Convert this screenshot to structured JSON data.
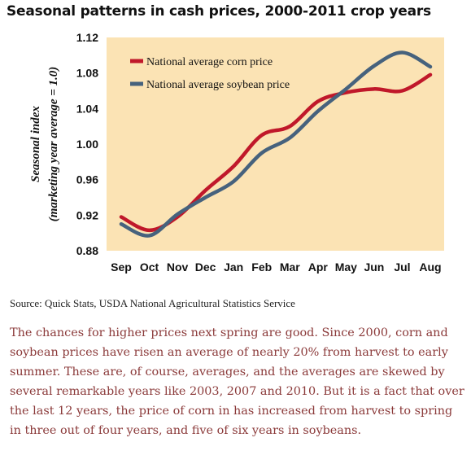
{
  "title": "Seasonal patterns in cash prices, 2000-2011 crop years",
  "source": "Source: Quick Stats, USDA National Agricultural Statistics Service",
  "body_text": "The chances for higher prices next spring are good. Since 2000, corn and soybean prices have risen an average of nearly 20% from harvest to early summer. These are, of course, averages, and the averages are skewed by several remarkable years like 2003, 2007 and 2010. But it is a fact that over the last 12 years, the price of corn in has increased from harvest to spring in three out of four years, and five of six years in soybeans.",
  "colors": {
    "plot_background": "#fbe3b4",
    "corn": "#c0182a",
    "soybean": "#46627d",
    "body_text": "#8b3a3a"
  },
  "chart_data": {
    "type": "line",
    "ylabel_line1": "Seasonal index",
    "ylabel_line2": "(marketing year average = 1.0)",
    "ylim": [
      0.88,
      1.12
    ],
    "yticks": [
      "0.88",
      "0.92",
      "0.96",
      "1.00",
      "1.04",
      "1.08",
      "1.12"
    ],
    "categories": [
      "Sep",
      "Oct",
      "Nov",
      "Dec",
      "Jan",
      "Feb",
      "Mar",
      "Apr",
      "May",
      "Jun",
      "Jul",
      "Aug"
    ],
    "grid": false,
    "legend_position": "top-left",
    "series": [
      {
        "name": "National average corn price",
        "color": "#c0182a",
        "values": [
          0.918,
          0.903,
          0.918,
          0.948,
          0.975,
          1.01,
          1.02,
          1.048,
          1.058,
          1.062,
          1.06,
          1.078
        ]
      },
      {
        "name": "National average soybean price",
        "color": "#46627d",
        "values": [
          0.91,
          0.897,
          0.921,
          0.94,
          0.958,
          0.99,
          1.007,
          1.037,
          1.062,
          1.088,
          1.103,
          1.087
        ]
      }
    ]
  }
}
